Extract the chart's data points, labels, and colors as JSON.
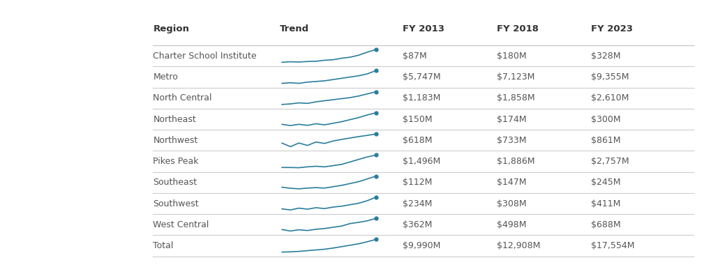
{
  "headers": [
    "Region",
    "Trend",
    "FY 2013",
    "FY 2018",
    "FY 2023"
  ],
  "rows": [
    {
      "region": "Charter School Institute",
      "fy2013": "$87M",
      "fy2018": "$180M",
      "fy2023": "$328M",
      "trend": [
        1,
        1.1,
        1.05,
        1.15,
        1.2,
        1.4,
        1.5,
        1.8,
        2.0,
        2.4,
        3.0,
        3.5
      ]
    },
    {
      "region": "Metro",
      "fy2013": "$5,747M",
      "fy2018": "$7,123M",
      "fy2023": "$9,355M",
      "trend": [
        1,
        1.05,
        1.0,
        1.1,
        1.15,
        1.2,
        1.3,
        1.4,
        1.5,
        1.6,
        1.75,
        2.0
      ]
    },
    {
      "region": "North Central",
      "fy2013": "$1,183M",
      "fy2018": "$1,858M",
      "fy2023": "$2,610M",
      "trend": [
        1,
        1.05,
        1.15,
        1.1,
        1.25,
        1.35,
        1.45,
        1.55,
        1.65,
        1.8,
        2.0,
        2.2
      ]
    },
    {
      "region": "Northeast",
      "fy2013": "$150M",
      "fy2018": "$174M",
      "fy2023": "$300M",
      "trend": [
        1,
        0.88,
        1.0,
        0.9,
        1.05,
        0.95,
        1.1,
        1.25,
        1.45,
        1.65,
        1.9,
        2.1
      ]
    },
    {
      "region": "Northwest",
      "fy2013": "$618M",
      "fy2018": "$733M",
      "fy2023": "$861M",
      "trend": [
        1,
        0.82,
        1.0,
        0.88,
        1.05,
        0.98,
        1.1,
        1.18,
        1.25,
        1.32,
        1.38,
        1.45
      ]
    },
    {
      "region": "Pikes Peak",
      "fy2013": "$1,496M",
      "fy2018": "$1,886M",
      "fy2023": "$2,757M",
      "trend": [
        1,
        1.0,
        0.98,
        1.05,
        1.1,
        1.05,
        1.15,
        1.25,
        1.45,
        1.65,
        1.85,
        2.0
      ]
    },
    {
      "region": "Southeast",
      "fy2013": "$112M",
      "fy2018": "$147M",
      "fy2023": "$245M",
      "trend": [
        1,
        0.88,
        0.82,
        0.9,
        0.95,
        0.9,
        1.05,
        1.2,
        1.4,
        1.6,
        1.9,
        2.2
      ]
    },
    {
      "region": "Southwest",
      "fy2013": "$234M",
      "fy2018": "$308M",
      "fy2023": "$411M",
      "trend": [
        1,
        0.93,
        1.05,
        0.98,
        1.08,
        1.02,
        1.12,
        1.18,
        1.28,
        1.38,
        1.55,
        1.78
      ]
    },
    {
      "region": "West Central",
      "fy2013": "$362M",
      "fy2018": "$498M",
      "fy2023": "$688M",
      "trend": [
        1,
        0.88,
        0.98,
        0.92,
        1.02,
        1.08,
        1.18,
        1.28,
        1.48,
        1.58,
        1.7,
        1.9
      ]
    },
    {
      "region": "Total",
      "fy2013": "$9,990M",
      "fy2018": "$12,908M",
      "fy2023": "$17,554M",
      "trend": [
        1,
        1.02,
        1.05,
        1.1,
        1.15,
        1.2,
        1.28,
        1.38,
        1.48,
        1.58,
        1.72,
        1.88
      ]
    }
  ],
  "bg_color": "#ffffff",
  "line_color": "#2a7d9c",
  "text_color": "#555555",
  "header_text_color": "#333333",
  "separator_color": "#cccccc",
  "header_fontsize": 9.5,
  "row_fontsize": 9.0
}
